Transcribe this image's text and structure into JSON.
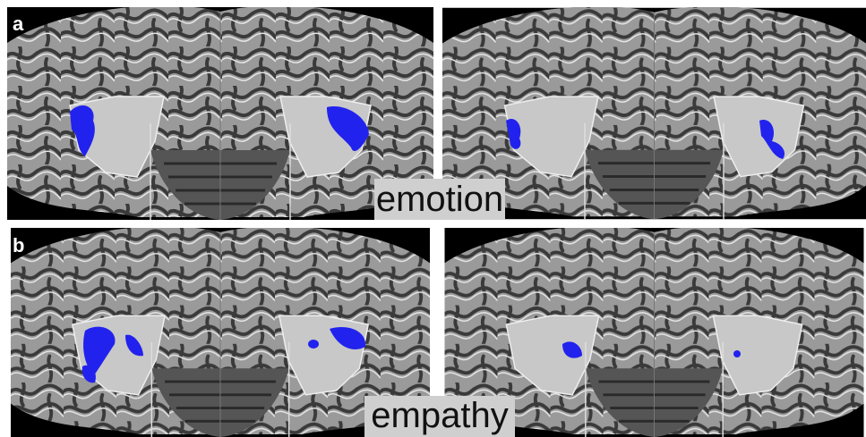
{
  "panels": [
    {
      "label": "a",
      "caption": "emotion"
    },
    {
      "label": "b",
      "caption": "empathy"
    }
  ]
}
